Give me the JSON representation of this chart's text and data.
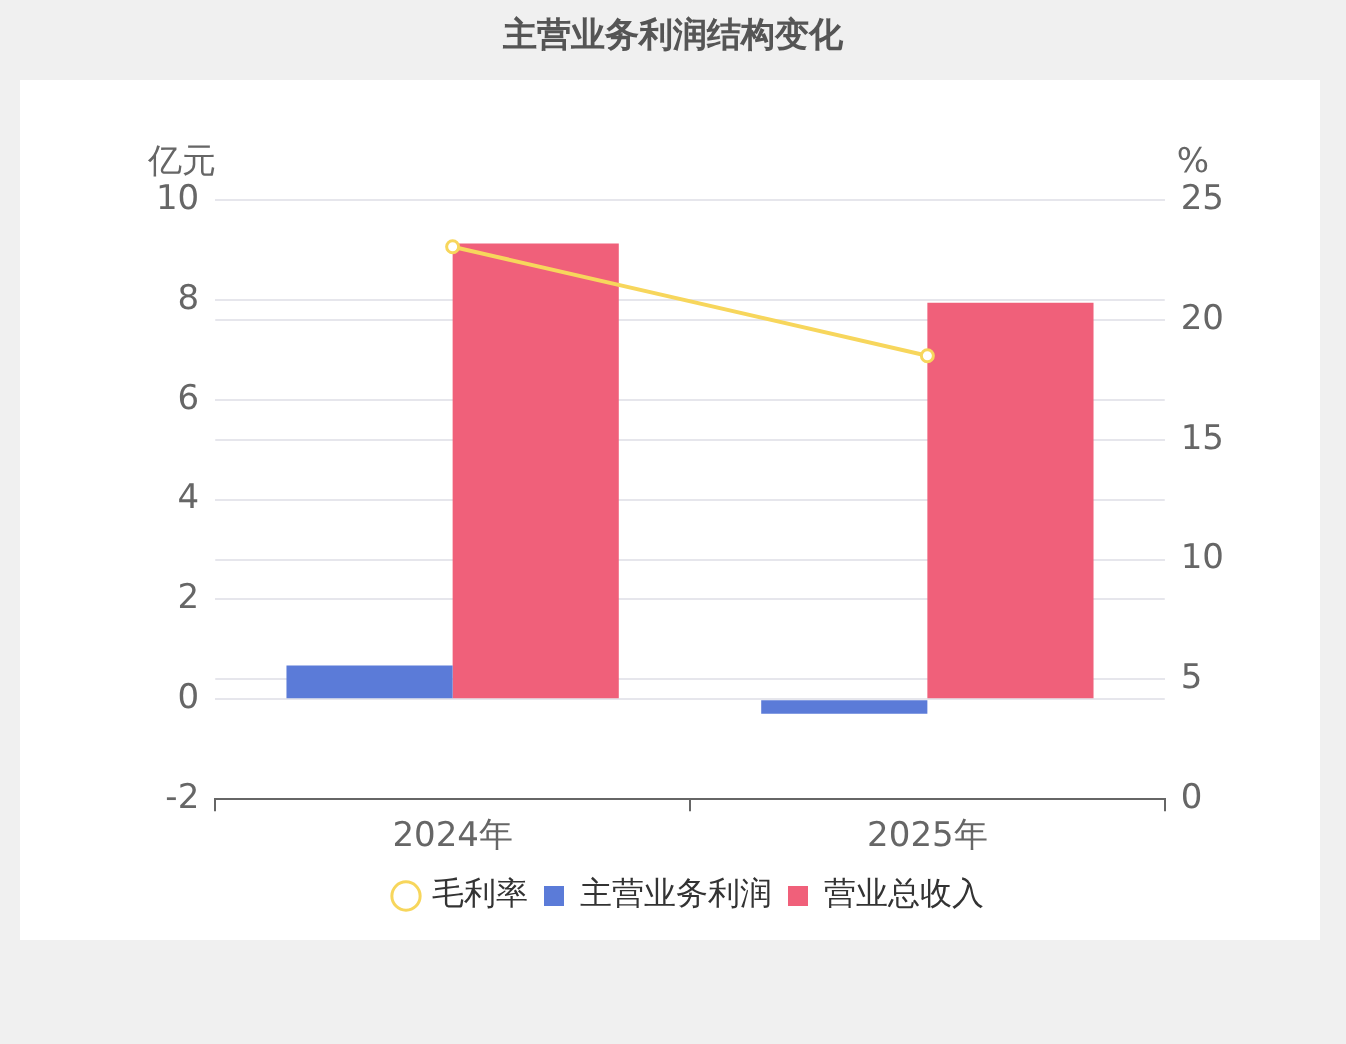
{
  "chart_data": {
    "type": "bar",
    "title": "主营业务利润结构变化",
    "ylabel": "亿元",
    "y2label": "%",
    "categories": [
      "2024年",
      "2025年"
    ],
    "series": [
      {
        "name": "主营业务利润",
        "color": "#5b7bd8",
        "values": [
          0.68,
          -0.29
        ]
      },
      {
        "name": "营业总收入",
        "color": "#f0607a",
        "values": [
          9.13,
          7.94
        ]
      },
      {
        "name": "毛利率",
        "type": "line",
        "axis": "y2",
        "color": "#f7d65c",
        "values": [
          23.05,
          18.5
        ]
      }
    ],
    "ylim": [
      -2,
      10
    ],
    "yticks": [
      -2,
      0,
      2,
      4,
      6,
      8,
      10
    ],
    "y2lim": [
      0,
      25
    ],
    "y2ticks": [
      0,
      5,
      10,
      15,
      20,
      25
    ],
    "grid": true,
    "legend": "bottom",
    "marker": "circle"
  }
}
